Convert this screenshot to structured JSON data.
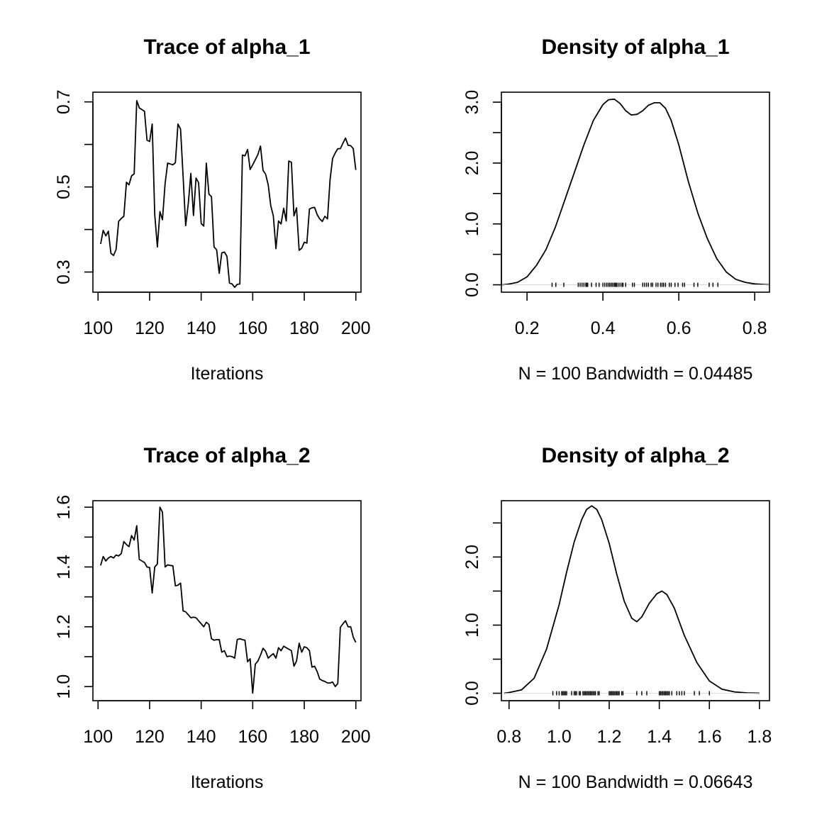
{
  "colors": {
    "background": "#ffffff",
    "ink": "#000000",
    "rug": "#000000"
  },
  "chart_data": [
    {
      "type": "line",
      "title": "Trace of alpha_1",
      "xlabel": "Iterations",
      "ylabel": "",
      "xlim": [
        98,
        202
      ],
      "ylim": [
        0.2526,
        0.7228
      ],
      "xticks": [
        100,
        120,
        140,
        160,
        180,
        200
      ],
      "xtick_labels": [
        "100",
        "120",
        "140",
        "160",
        "180",
        "200"
      ],
      "yticks": [
        0.3,
        0.4,
        0.5,
        0.6,
        0.7
      ],
      "ytick_labels": [
        "0.3",
        "",
        "0.5",
        "",
        "0.7"
      ],
      "x": [
        101,
        102,
        103,
        104,
        105,
        106,
        107,
        108,
        109,
        110,
        111,
        112,
        113,
        114,
        115,
        116,
        117,
        118,
        119,
        120,
        121,
        122,
        123,
        124,
        125,
        126,
        127,
        128,
        129,
        130,
        131,
        132,
        133,
        134,
        135,
        136,
        137,
        138,
        139,
        140,
        141,
        142,
        143,
        144,
        145,
        146,
        147,
        148,
        149,
        150,
        151,
        152,
        153,
        154,
        155,
        156,
        157,
        158,
        159,
        160,
        161,
        162,
        163,
        164,
        165,
        166,
        167,
        168,
        169,
        170,
        171,
        172,
        173,
        174,
        175,
        176,
        177,
        178,
        179,
        180,
        181,
        182,
        183,
        184,
        185,
        186,
        187,
        188,
        189,
        190,
        191,
        192,
        193,
        194,
        195,
        196,
        197,
        198,
        199,
        200
      ],
      "y": [
        0.366,
        0.398,
        0.385,
        0.396,
        0.344,
        0.339,
        0.353,
        0.419,
        0.426,
        0.431,
        0.511,
        0.505,
        0.526,
        0.531,
        0.703,
        0.686,
        0.682,
        0.678,
        0.61,
        0.607,
        0.648,
        0.435,
        0.359,
        0.442,
        0.423,
        0.508,
        0.556,
        0.554,
        0.552,
        0.557,
        0.648,
        0.636,
        0.524,
        0.409,
        0.461,
        0.532,
        0.433,
        0.521,
        0.51,
        0.414,
        0.408,
        0.556,
        0.483,
        0.477,
        0.359,
        0.352,
        0.297,
        0.345,
        0.347,
        0.337,
        0.274,
        0.272,
        0.264,
        0.271,
        0.272,
        0.575,
        0.573,
        0.588,
        0.541,
        0.552,
        0.564,
        0.576,
        0.596,
        0.539,
        0.53,
        0.505,
        0.456,
        0.432,
        0.355,
        0.42,
        0.413,
        0.45,
        0.42,
        0.561,
        0.558,
        0.432,
        0.451,
        0.351,
        0.356,
        0.37,
        0.368,
        0.448,
        0.451,
        0.452,
        0.435,
        0.425,
        0.419,
        0.431,
        0.425,
        0.517,
        0.567,
        0.58,
        0.59,
        0.59,
        0.603,
        0.615,
        0.598,
        0.597,
        0.59,
        0.54
      ]
    },
    {
      "type": "line",
      "title": "Density of alpha_1",
      "xlabel": "N = 100   Bandwidth = 0.04485",
      "ylabel": "",
      "xlim": [
        0.1325,
        0.839
      ],
      "ylim": [
        -0.1217,
        3.1639
      ],
      "xticks": [
        0.2,
        0.4,
        0.6,
        0.8
      ],
      "xtick_labels": [
        "0.2",
        "0.4",
        "0.6",
        "0.8"
      ],
      "yticks": [
        0.0,
        0.5,
        1.0,
        1.5,
        2.0,
        2.5,
        3.0
      ],
      "ytick_labels": [
        "0.0",
        "",
        "1.0",
        "",
        "2.0",
        "",
        "3.0"
      ],
      "x": [
        0.135,
        0.15,
        0.175,
        0.2,
        0.225,
        0.25,
        0.275,
        0.3,
        0.325,
        0.35,
        0.375,
        0.4,
        0.415,
        0.43,
        0.445,
        0.46,
        0.475,
        0.49,
        0.505,
        0.52,
        0.535,
        0.55,
        0.565,
        0.58,
        0.6,
        0.625,
        0.65,
        0.675,
        0.7,
        0.725,
        0.75,
        0.775,
        0.8,
        0.825,
        0.838
      ],
      "y": [
        0.0,
        0.01,
        0.04,
        0.13,
        0.32,
        0.58,
        0.95,
        1.4,
        1.85,
        2.3,
        2.7,
        2.96,
        3.04,
        3.05,
        2.98,
        2.86,
        2.79,
        2.8,
        2.86,
        2.95,
        2.99,
        2.99,
        2.9,
        2.7,
        2.3,
        1.7,
        1.18,
        0.76,
        0.43,
        0.21,
        0.09,
        0.04,
        0.015,
        0.005,
        0.002
      ],
      "rug": [
        0.266,
        0.276,
        0.297,
        0.335,
        0.34,
        0.345,
        0.35,
        0.355,
        0.357,
        0.36,
        0.37,
        0.382,
        0.39,
        0.4,
        0.405,
        0.41,
        0.414,
        0.418,
        0.422,
        0.426,
        0.43,
        0.433,
        0.436,
        0.44,
        0.445,
        0.45,
        0.453,
        0.46,
        0.478,
        0.483,
        0.505,
        0.51,
        0.515,
        0.52,
        0.527,
        0.531,
        0.54,
        0.545,
        0.552,
        0.556,
        0.56,
        0.565,
        0.575,
        0.58,
        0.59,
        0.598,
        0.61,
        0.615,
        0.64,
        0.65,
        0.68,
        0.69,
        0.703
      ]
    },
    {
      "type": "line",
      "title": "Trace of alpha_2",
      "xlabel": "Iterations",
      "ylabel": "",
      "xlim": [
        98,
        202
      ],
      "ylim": [
        0.9527,
        1.6217
      ],
      "xticks": [
        100,
        120,
        140,
        160,
        180,
        200
      ],
      "xtick_labels": [
        "100",
        "120",
        "140",
        "160",
        "180",
        "200"
      ],
      "yticks": [
        1.0,
        1.1,
        1.2,
        1.3,
        1.4,
        1.5,
        1.6
      ],
      "ytick_labels": [
        "1.0",
        "",
        "1.2",
        "",
        "1.4",
        "",
        "1.6"
      ],
      "x": [
        101,
        102,
        103,
        104,
        105,
        106,
        107,
        108,
        109,
        110,
        111,
        112,
        113,
        114,
        115,
        116,
        117,
        118,
        119,
        120,
        121,
        122,
        123,
        124,
        125,
        126,
        127,
        128,
        129,
        130,
        131,
        132,
        133,
        134,
        135,
        136,
        137,
        138,
        139,
        140,
        141,
        142,
        143,
        144,
        145,
        146,
        147,
        148,
        149,
        150,
        151,
        152,
        153,
        154,
        155,
        156,
        157,
        158,
        159,
        160,
        161,
        162,
        163,
        164,
        165,
        166,
        167,
        168,
        169,
        170,
        171,
        172,
        173,
        174,
        175,
        176,
        177,
        178,
        179,
        180,
        181,
        182,
        183,
        184,
        185,
        186,
        187,
        188,
        189,
        190,
        191,
        192,
        193,
        194,
        195,
        196,
        197,
        198,
        199,
        200
      ],
      "y": [
        1.405,
        1.435,
        1.42,
        1.43,
        1.435,
        1.43,
        1.44,
        1.437,
        1.445,
        1.485,
        1.475,
        1.468,
        1.505,
        1.49,
        1.538,
        1.425,
        1.42,
        1.415,
        1.4,
        1.398,
        1.313,
        1.4,
        1.41,
        1.6,
        1.583,
        1.4,
        1.407,
        1.405,
        1.404,
        1.337,
        1.339,
        1.346,
        1.253,
        1.25,
        1.24,
        1.23,
        1.232,
        1.23,
        1.22,
        1.21,
        1.2,
        1.215,
        1.208,
        1.16,
        1.155,
        1.157,
        1.157,
        1.115,
        1.12,
        1.1,
        1.102,
        1.1,
        1.095,
        1.157,
        1.16,
        1.157,
        1.155,
        1.083,
        1.093,
        0.978,
        1.075,
        1.085,
        1.105,
        1.128,
        1.118,
        1.095,
        1.103,
        1.11,
        1.095,
        1.13,
        1.12,
        1.135,
        1.13,
        1.125,
        1.12,
        1.068,
        1.085,
        1.145,
        1.115,
        1.133,
        1.13,
        1.12,
        1.065,
        1.068,
        1.05,
        1.025,
        1.02,
        1.017,
        1.012,
        1.012,
        1.015,
        1.0,
        1.01,
        1.198,
        1.21,
        1.22,
        1.2,
        1.2,
        1.165,
        1.148
      ]
    },
    {
      "type": "line",
      "title": "Density of alpha_2",
      "xlabel": "N = 100   Bandwidth = 0.06643",
      "ylabel": "",
      "xlim": [
        0.7695,
        1.84
      ],
      "ylim": [
        -0.1092,
        2.8265
      ],
      "xticks": [
        0.8,
        1.0,
        1.2,
        1.4,
        1.6,
        1.8
      ],
      "xtick_labels": [
        "0.8",
        "1.0",
        "1.2",
        "1.4",
        "1.6",
        "1.8"
      ],
      "yticks": [
        0.0,
        0.5,
        1.0,
        1.5,
        2.0,
        2.5
      ],
      "ytick_labels": [
        "0.0",
        "",
        "1.0",
        "",
        "2.0",
        ""
      ],
      "x": [
        0.78,
        0.8,
        0.85,
        0.9,
        0.95,
        1.0,
        1.03,
        1.06,
        1.09,
        1.11,
        1.13,
        1.15,
        1.17,
        1.2,
        1.23,
        1.26,
        1.29,
        1.31,
        1.33,
        1.36,
        1.39,
        1.41,
        1.43,
        1.46,
        1.5,
        1.55,
        1.6,
        1.65,
        1.7,
        1.75,
        1.8
      ],
      "y": [
        0.0,
        0.01,
        0.05,
        0.22,
        0.65,
        1.3,
        1.78,
        2.22,
        2.55,
        2.7,
        2.75,
        2.7,
        2.55,
        2.2,
        1.75,
        1.35,
        1.1,
        1.05,
        1.12,
        1.32,
        1.46,
        1.5,
        1.45,
        1.25,
        0.85,
        0.45,
        0.18,
        0.06,
        0.02,
        0.005,
        0.001
      ],
      "rug": [
        0.975,
        0.99,
        1.0,
        1.01,
        1.015,
        1.02,
        1.025,
        1.03,
        1.05,
        1.06,
        1.065,
        1.07,
        1.08,
        1.085,
        1.095,
        1.1,
        1.105,
        1.11,
        1.115,
        1.12,
        1.125,
        1.13,
        1.135,
        1.14,
        1.145,
        1.155,
        1.16,
        1.2,
        1.205,
        1.21,
        1.215,
        1.22,
        1.225,
        1.23,
        1.235,
        1.24,
        1.25,
        1.255,
        1.31,
        1.33,
        1.35,
        1.4,
        1.405,
        1.41,
        1.415,
        1.42,
        1.425,
        1.43,
        1.435,
        1.44,
        1.45,
        1.47,
        1.48,
        1.49,
        1.5,
        1.54,
        1.56,
        1.6
      ]
    }
  ]
}
